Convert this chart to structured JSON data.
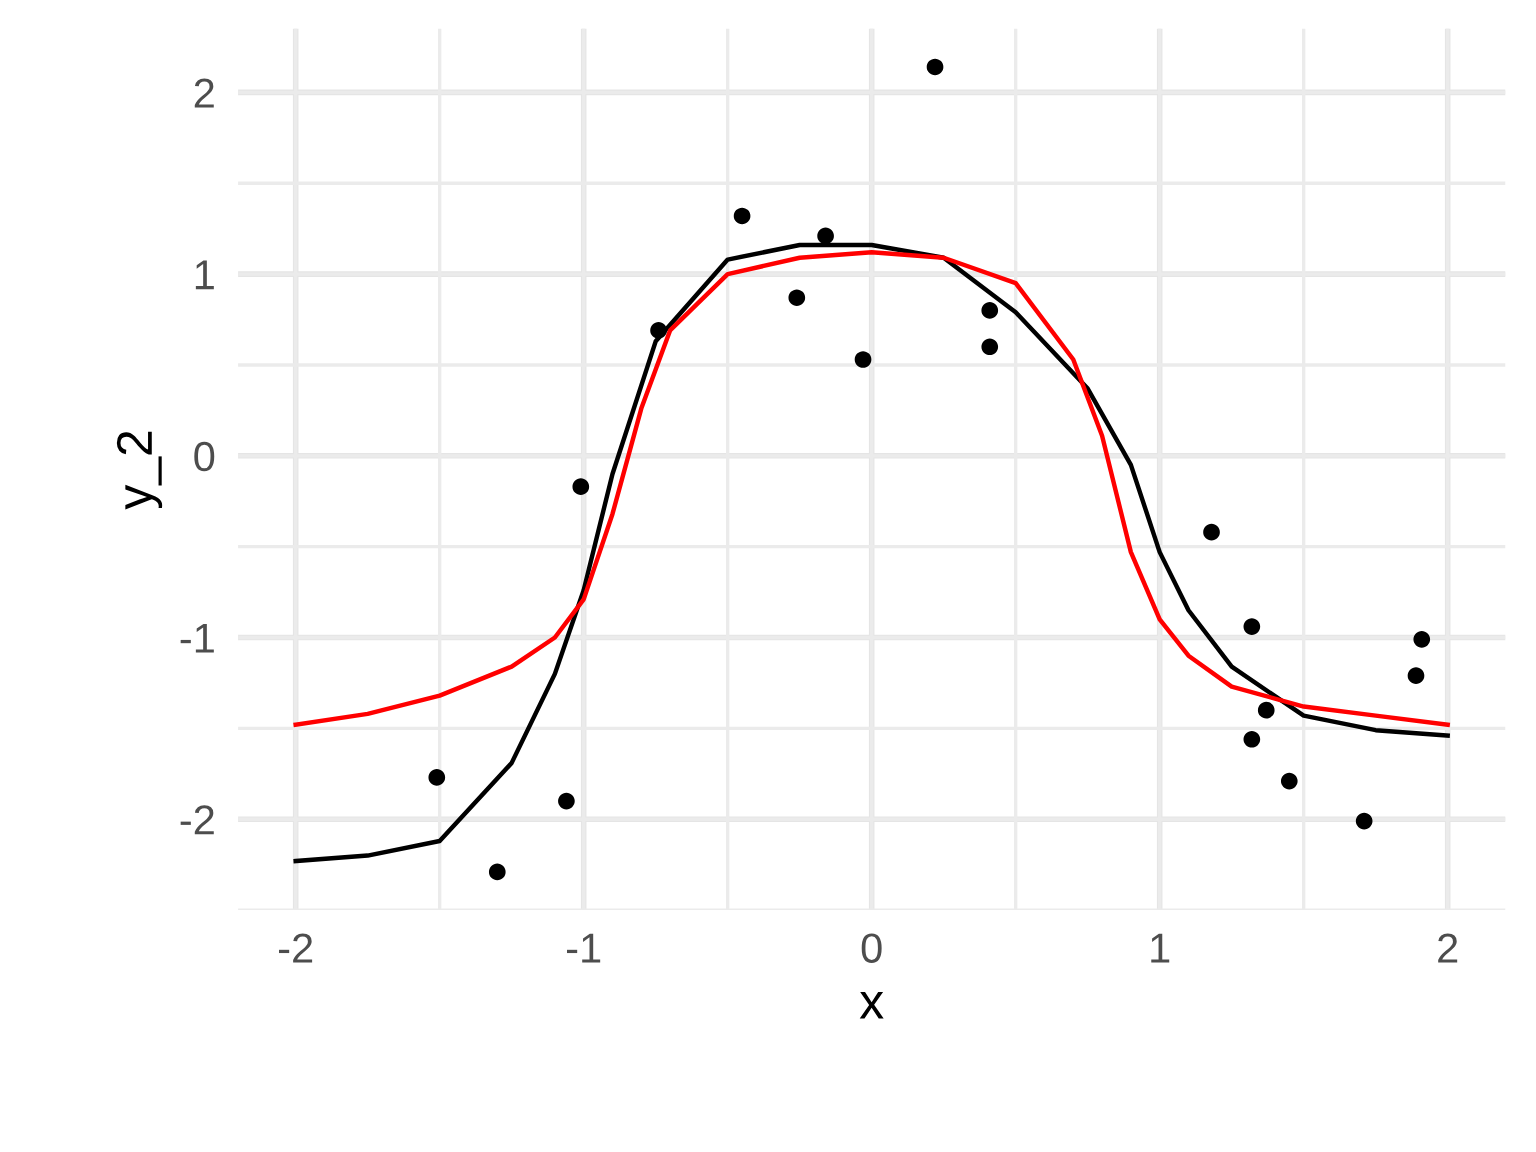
{
  "chart_data": {
    "type": "scatter",
    "xlabel": "x",
    "ylabel": "y_2",
    "xlim": [
      -2.2,
      2.2
    ],
    "ylim": [
      -2.5,
      2.35
    ],
    "xticks": [
      -2,
      {
        "value": -1.5,
        "label": null
      },
      -1,
      {
        "value": -0.5,
        "label": null
      },
      0,
      {
        "value": 0.5,
        "label": null
      },
      1,
      {
        "value": 1.5,
        "label": null
      },
      2
    ],
    "yticks": [
      {
        "value": -2.5,
        "label": null
      },
      -2,
      {
        "value": -1.5,
        "label": null
      },
      -1,
      {
        "value": -0.5,
        "label": null
      },
      0,
      {
        "value": 0.5,
        "label": null
      },
      1,
      {
        "value": 1.5,
        "label": null
      },
      2
    ],
    "grid": true,
    "series": [
      {
        "color": "#000000",
        "marker": "circle",
        "x": [
          -1.51,
          -1.3,
          -1.06,
          -1.01,
          -0.74,
          -0.45,
          -0.26,
          -0.16,
          -0.03,
          0.22,
          0.41,
          0.41,
          1.18,
          1.32,
          1.32,
          1.37,
          1.45,
          1.71,
          1.91,
          1.89
        ],
        "values": [
          -1.77,
          -2.29,
          -1.9,
          -0.17,
          0.69,
          1.32,
          0.87,
          1.21,
          0.53,
          2.14,
          0.8,
          0.6,
          -0.42,
          -0.94,
          -1.56,
          -1.4,
          -1.79,
          -2.01,
          -1.01,
          -1.21
        ]
      },
      {
        "type": "line",
        "color": "#000000",
        "x": [
          -2,
          -1.75,
          -1.5,
          -1.25,
          -1.1,
          -1,
          -0.9,
          -0.75,
          -0.5,
          -0.25,
          0,
          0.25,
          0.5,
          0.75,
          0.9,
          1,
          1.1,
          1.25,
          1.5,
          1.75,
          2
        ],
        "values": [
          -2.23,
          -2.2,
          -2.12,
          -1.69,
          -1.2,
          -0.74,
          -0.1,
          0.63,
          1.08,
          1.16,
          1.16,
          1.09,
          0.79,
          0.37,
          -0.05,
          -0.53,
          -0.85,
          -1.16,
          -1.43,
          -1.51,
          -1.54
        ]
      },
      {
        "type": "line",
        "color": "#ff0000",
        "x": [
          -2,
          -1.75,
          -1.5,
          -1.25,
          -1.1,
          -1,
          -0.9,
          -0.8,
          -0.7,
          -0.5,
          -0.25,
          0,
          0.25,
          0.5,
          0.7,
          0.8,
          0.9,
          1,
          1.1,
          1.25,
          1.5,
          1.75,
          2
        ],
        "values": [
          -1.48,
          -1.42,
          -1.32,
          -1.16,
          -1.0,
          -0.79,
          -0.32,
          0.26,
          0.69,
          1.0,
          1.09,
          1.12,
          1.09,
          0.95,
          0.53,
          0.11,
          -0.53,
          -0.9,
          -1.1,
          -1.27,
          -1.38,
          -1.43,
          -1.48
        ]
      }
    ]
  }
}
